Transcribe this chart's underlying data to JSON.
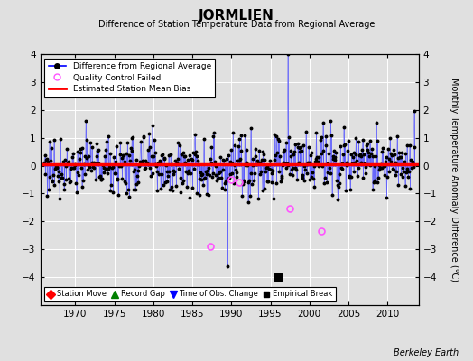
{
  "title": "JORMLIEN",
  "subtitle": "Difference of Station Temperature Data from Regional Average",
  "xlabel_years": [
    1970,
    1975,
    1980,
    1985,
    1990,
    1995,
    2000,
    2005,
    2010
  ],
  "ylim": [
    -5,
    4
  ],
  "yticks": [
    -4,
    -3,
    -2,
    -1,
    0,
    1,
    2,
    3,
    4
  ],
  "ylabel": "Monthly Temperature Anomaly Difference (°C)",
  "bias_line_y": 0.05,
  "empirical_break_x": 1996.0,
  "empirical_break_y": -4.0,
  "bg_color": "#e0e0e0",
  "plot_bg_color": "#e0e0e0",
  "line_color": "#5555ff",
  "marker_color": "#000000",
  "bias_color": "#ff0000",
  "qc_color": "#ff55ff",
  "watermark": "Berkeley Earth",
  "xlim": [
    1965.5,
    2014.0
  ],
  "start_year": 1966.0,
  "end_year": 2013.5,
  "qc_years": [
    1987.25,
    1990.0,
    1991.0,
    1997.5,
    2001.5
  ],
  "qc_values": [
    -2.9,
    -0.5,
    -0.6,
    -1.55,
    -2.35
  ],
  "spike_1997_y": 4.0,
  "spike_1989_y": -3.6,
  "seed": 77
}
